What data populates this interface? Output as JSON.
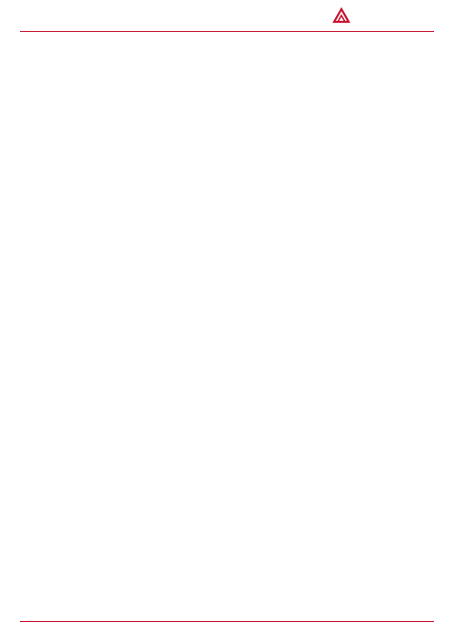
{
  "header": {
    "title": "",
    "logo_cn": "",
    "logo_en": "",
    "brand_color": "#c8102e"
  },
  "figure": {
    "title": ""
  },
  "table": {
    "header_color": "#c00000",
    "columns": [],
    "rows": []
  },
  "footer": {
    "source": "",
    "page_number": "",
    "disclaimer": ""
  }
}
